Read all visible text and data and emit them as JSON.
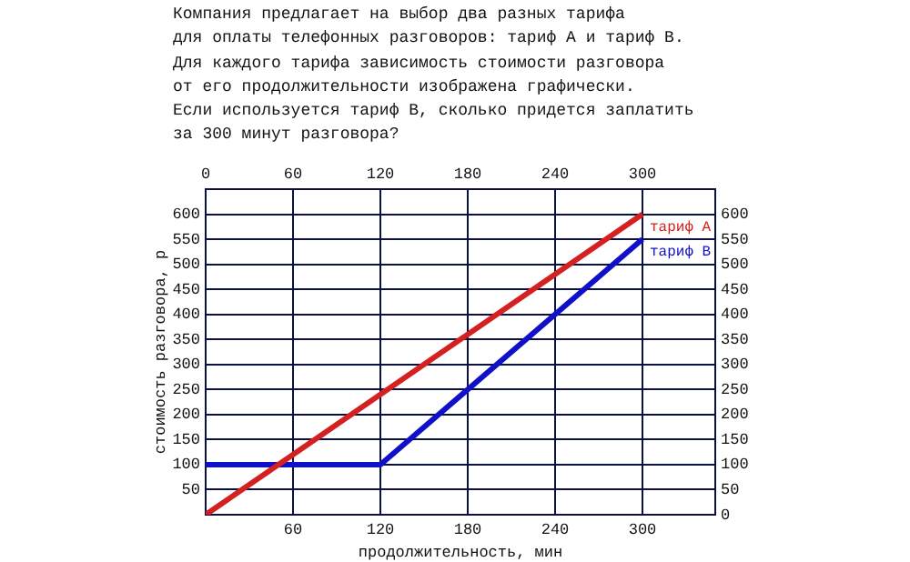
{
  "chart_data": {
    "type": "line",
    "title": "Компания предлагает на выбор два разных тарифа\nдля оплаты телефонных разговоров: тариф A и тариф B.\nДля каждого тарифа зависимость стоимости разговора\nот его продолжительности изображена графически.\nЕсли используется тариф B, сколько придется заплатить\nза 300 минут разговора?",
    "xlabel": "продолжительность, мин",
    "ylabel": "стоимость разговора, р",
    "series": [
      {
        "name": "тариф A",
        "color": "#d42020",
        "x": [
          0,
          300
        ],
        "values": [
          0,
          600
        ]
      },
      {
        "name": "тариф B",
        "color": "#1010c8",
        "x": [
          0,
          120,
          300
        ],
        "values": [
          100,
          100,
          550
        ]
      }
    ],
    "xlim": [
      0,
      350
    ],
    "xticks": [
      60,
      120,
      180,
      240,
      300
    ],
    "x2lim": [
      0,
      350
    ],
    "x2ticks": [
      0,
      60,
      120,
      180,
      240,
      300
    ],
    "ylim": [
      0,
      650
    ],
    "yticks": [
      50,
      100,
      150,
      200,
      250,
      300,
      350,
      400,
      450,
      500,
      550,
      600
    ],
    "y2lim": [
      0,
      650
    ],
    "y2ticks": [
      0,
      50,
      100,
      150,
      200,
      250,
      300,
      350,
      400,
      450,
      500,
      550,
      600
    ],
    "grid": true,
    "legend": false,
    "marker": "none",
    "line_style": "solid"
  }
}
